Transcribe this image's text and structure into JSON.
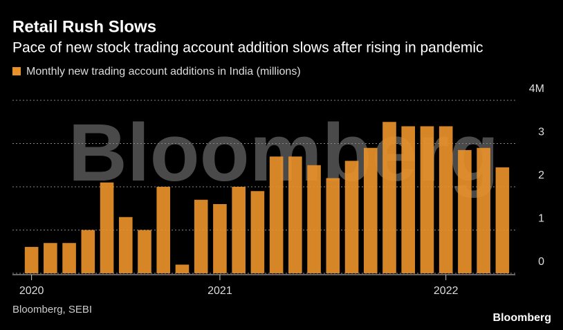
{
  "chart_data": {
    "type": "bar",
    "title": "Retail Rush Slows",
    "subtitle": "Pace of new stock trading account addition slows after rising in pandemic",
    "series": [
      {
        "name": "Monthly new trading account additions in India (millions)",
        "color": "#e8902a",
        "values": [
          0.61,
          0.7,
          0.7,
          1.0,
          2.1,
          1.3,
          1.0,
          2.0,
          0.2,
          1.7,
          1.6,
          2.0,
          1.9,
          2.7,
          2.7,
          2.5,
          2.2,
          2.6,
          2.9,
          3.5,
          3.4,
          3.4,
          3.4,
          2.85,
          2.9,
          2.45
        ]
      }
    ],
    "categories": [
      "2020",
      null,
      null,
      null,
      null,
      null,
      null,
      null,
      null,
      null,
      "2021",
      null,
      null,
      null,
      null,
      null,
      null,
      null,
      null,
      null,
      null,
      null,
      "2022",
      null,
      null,
      null
    ],
    "ylim": [
      0,
      4
    ],
    "yticks": [
      0,
      1,
      2,
      3,
      {
        "value": 4,
        "label": "4M"
      }
    ],
    "grid": true,
    "source": "Bloomberg, SEBI",
    "watermark": "Bloomberg",
    "logo": "Bloomberg"
  }
}
